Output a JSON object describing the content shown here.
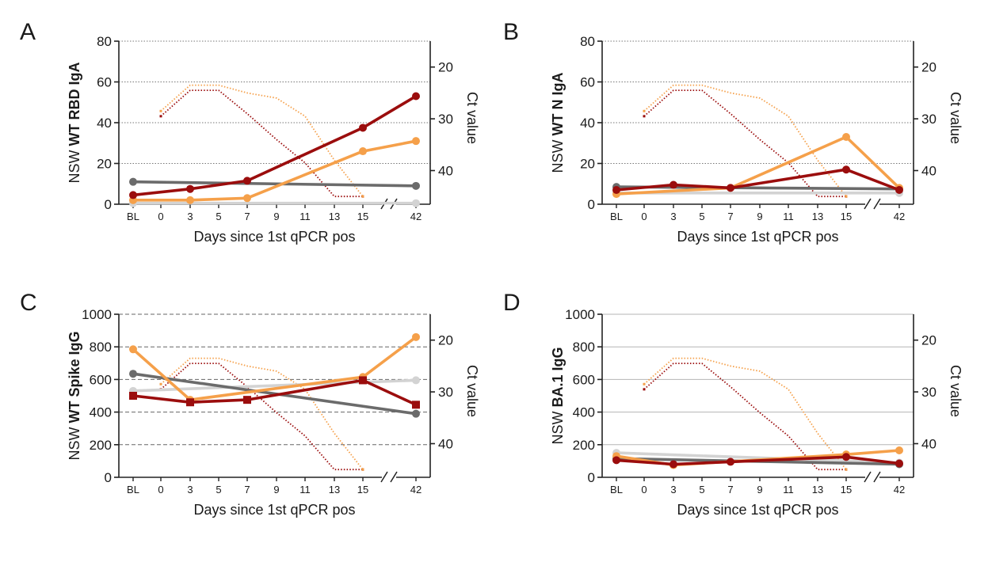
{
  "chart_data": [
    {
      "panel": "A",
      "type": "line",
      "ylabel_prefix": "NSW",
      "ylabel_bold": "WT RBD IgA",
      "xlabel": "Days since 1st qPCR pos",
      "y2label": "Ct value",
      "categories": [
        "BL",
        "0",
        "3",
        "5",
        "7",
        "9",
        "11",
        "13",
        "15",
        "42"
      ],
      "ylim": [
        0,
        80
      ],
      "yticks": [
        "0",
        "20",
        "40",
        "60",
        "80"
      ],
      "y2ticks": [
        "20",
        "30",
        "40"
      ],
      "grid": "dotted",
      "series": [
        {
          "color": "#9b0d0d",
          "marker": "circle",
          "points": [
            [
              "BL",
              4.5
            ],
            [
              "3",
              7.5
            ],
            [
              "7",
              11.5
            ],
            [
              "15",
              37.5
            ],
            [
              "42",
              53
            ]
          ]
        },
        {
          "color": "#f5a04a",
          "marker": "circle",
          "points": [
            [
              "BL",
              2
            ],
            [
              "3",
              2
            ],
            [
              "7",
              3
            ],
            [
              "15",
              26
            ],
            [
              "42",
              31
            ]
          ]
        },
        {
          "color": "#6b6b6b",
          "marker": "circle",
          "points": [
            [
              "BL",
              11
            ],
            [
              "42",
              9
            ]
          ]
        },
        {
          "color": "#d3d3d3",
          "marker": "circle",
          "points": [
            [
              "BL",
              0.5
            ],
            [
              "42",
              0.5
            ]
          ]
        }
      ],
      "ct_series": [
        {
          "color": "#9b0d0d",
          "points": [
            [
              "0",
              29.5
            ],
            [
              "3",
              24.5
            ],
            [
              "5",
              24.5
            ],
            [
              "7",
              29
            ],
            [
              "9",
              34
            ],
            [
              "11",
              38.5
            ],
            [
              "13",
              45
            ],
            [
              "15",
              45
            ]
          ]
        },
        {
          "color": "#f5a04a",
          "points": [
            [
              "0",
              28.5
            ],
            [
              "3",
              23.5
            ],
            [
              "5",
              23.5
            ],
            [
              "7",
              25
            ],
            [
              "9",
              26
            ],
            [
              "11",
              29.5
            ],
            [
              "13",
              38
            ],
            [
              "15",
              45
            ]
          ]
        }
      ]
    },
    {
      "panel": "B",
      "type": "line",
      "ylabel_prefix": "NSW",
      "ylabel_bold": "WT N IgA",
      "xlabel": "Days since 1st qPCR pos",
      "y2label": "Ct value",
      "categories": [
        "BL",
        "0",
        "3",
        "5",
        "7",
        "9",
        "11",
        "13",
        "15",
        "42"
      ],
      "ylim": [
        0,
        80
      ],
      "yticks": [
        "0",
        "20",
        "40",
        "60",
        "80"
      ],
      "y2ticks": [
        "20",
        "30",
        "40"
      ],
      "grid": "dotted",
      "series": [
        {
          "color": "#9b0d0d",
          "marker": "circle",
          "points": [
            [
              "BL",
              7
            ],
            [
              "3",
              9.5
            ],
            [
              "7",
              8
            ],
            [
              "15",
              17
            ],
            [
              "42",
              7
            ]
          ]
        },
        {
          "color": "#f5a04a",
          "marker": "circle",
          "points": [
            [
              "BL",
              5
            ],
            [
              "7",
              8
            ],
            [
              "15",
              33
            ],
            [
              "42",
              8
            ]
          ]
        },
        {
          "color": "#6b6b6b",
          "marker": "circle",
          "points": [
            [
              "BL",
              8.5
            ],
            [
              "42",
              7.5
            ]
          ]
        },
        {
          "color": "#d3d3d3",
          "marker": "circle",
          "points": [
            [
              "BL",
              5.5
            ],
            [
              "42",
              5.5
            ]
          ]
        }
      ],
      "ct_series": [
        {
          "color": "#9b0d0d",
          "points": [
            [
              "0",
              29.5
            ],
            [
              "3",
              24.5
            ],
            [
              "5",
              24.5
            ],
            [
              "7",
              29
            ],
            [
              "9",
              34
            ],
            [
              "11",
              38.5
            ],
            [
              "13",
              45
            ],
            [
              "15",
              45
            ]
          ]
        },
        {
          "color": "#f5a04a",
          "points": [
            [
              "0",
              28.5
            ],
            [
              "3",
              23.5
            ],
            [
              "5",
              23.5
            ],
            [
              "7",
              25
            ],
            [
              "9",
              26
            ],
            [
              "11",
              29.5
            ],
            [
              "13",
              38
            ],
            [
              "15",
              45
            ]
          ]
        }
      ]
    },
    {
      "panel": "C",
      "type": "line",
      "ylabel_prefix": "NSW",
      "ylabel_bold": "WT Spike IgG",
      "xlabel": "Days since 1st qPCR pos",
      "y2label": "Ct value",
      "categories": [
        "BL",
        "0",
        "3",
        "5",
        "7",
        "9",
        "11",
        "13",
        "15",
        "42"
      ],
      "ylim": [
        0,
        1000
      ],
      "yticks": [
        "0",
        "200",
        "400",
        "600",
        "800",
        "1000"
      ],
      "y2ticks": [
        "20",
        "30",
        "40"
      ],
      "grid": "dashed",
      "series": [
        {
          "color": "#9b0d0d",
          "marker": "square",
          "points": [
            [
              "BL",
              500
            ],
            [
              "3",
              460
            ],
            [
              "7",
              475
            ],
            [
              "15",
              595
            ],
            [
              "42",
              445
            ]
          ]
        },
        {
          "color": "#f5a04a",
          "marker": "circle",
          "points": [
            [
              "BL",
              785
            ],
            [
              "3",
              475
            ],
            [
              "15",
              615
            ],
            [
              "42",
              860
            ]
          ]
        },
        {
          "color": "#6b6b6b",
          "marker": "circle",
          "points": [
            [
              "BL",
              635
            ],
            [
              "42",
              390
            ]
          ]
        },
        {
          "color": "#d3d3d3",
          "marker": "circle",
          "points": [
            [
              "BL",
              530
            ],
            [
              "42",
              595
            ]
          ]
        }
      ],
      "ct_series": [
        {
          "color": "#9b0d0d",
          "points": [
            [
              "0",
              29.5
            ],
            [
              "3",
              24.5
            ],
            [
              "5",
              24.5
            ],
            [
              "7",
              29
            ],
            [
              "9",
              34
            ],
            [
              "11",
              38.5
            ],
            [
              "13",
              45
            ],
            [
              "15",
              45
            ]
          ]
        },
        {
          "color": "#f5a04a",
          "points": [
            [
              "0",
              28.5
            ],
            [
              "3",
              23.5
            ],
            [
              "5",
              23.5
            ],
            [
              "7",
              25
            ],
            [
              "9",
              26
            ],
            [
              "11",
              29.5
            ],
            [
              "13",
              38
            ],
            [
              "15",
              45
            ]
          ]
        }
      ]
    },
    {
      "panel": "D",
      "type": "line",
      "ylabel_prefix": "NSW",
      "ylabel_bold": "BA.1 IgG",
      "xlabel": "Days since 1st qPCR pos",
      "y2label": "Ct value",
      "categories": [
        "BL",
        "0",
        "3",
        "5",
        "7",
        "9",
        "11",
        "13",
        "15",
        "42"
      ],
      "ylim": [
        0,
        1000
      ],
      "yticks": [
        "0",
        "200",
        "400",
        "600",
        "800",
        "1000"
      ],
      "y2ticks": [
        "20",
        "30",
        "40"
      ],
      "grid": "solid",
      "series": [
        {
          "color": "#9b0d0d",
          "marker": "circle",
          "points": [
            [
              "BL",
              105
            ],
            [
              "3",
              80
            ],
            [
              "7",
              95
            ],
            [
              "15",
              125
            ],
            [
              "42",
              85
            ]
          ]
        },
        {
          "color": "#f5a04a",
          "marker": "circle",
          "points": [
            [
              "BL",
              130
            ],
            [
              "3",
              75
            ],
            [
              "15",
              140
            ],
            [
              "42",
              165
            ]
          ]
        },
        {
          "color": "#6b6b6b",
          "marker": "circle",
          "points": [
            [
              "BL",
              115
            ],
            [
              "42",
              80
            ]
          ]
        },
        {
          "color": "#d3d3d3",
          "marker": "circle",
          "points": [
            [
              "BL",
              150
            ],
            [
              "42",
              90
            ]
          ]
        }
      ],
      "ct_series": [
        {
          "color": "#9b0d0d",
          "points": [
            [
              "0",
              29.5
            ],
            [
              "3",
              24.5
            ],
            [
              "5",
              24.5
            ],
            [
              "7",
              29
            ],
            [
              "9",
              34
            ],
            [
              "11",
              38.5
            ],
            [
              "13",
              45
            ],
            [
              "15",
              45
            ]
          ]
        },
        {
          "color": "#f5a04a",
          "points": [
            [
              "0",
              28.5
            ],
            [
              "3",
              23.5
            ],
            [
              "5",
              23.5
            ],
            [
              "7",
              25
            ],
            [
              "9",
              26
            ],
            [
              "11",
              29.5
            ],
            [
              "13",
              38
            ],
            [
              "15",
              45
            ]
          ]
        }
      ]
    }
  ]
}
